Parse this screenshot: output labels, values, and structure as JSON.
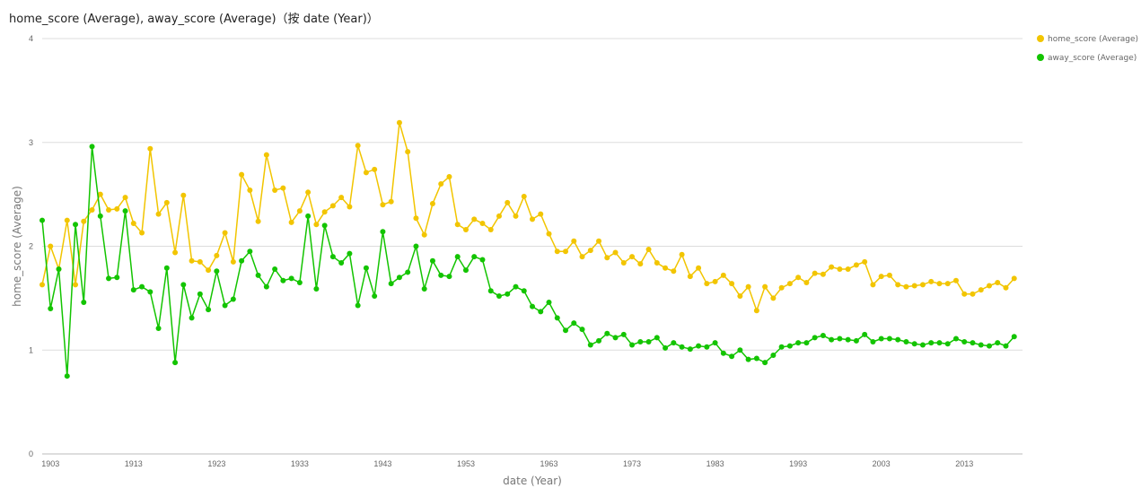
{
  "title": "home_score (Average), away_score (Average)（按 date (Year)）",
  "chart_data": {
    "type": "line",
    "xlabel": "date (Year)",
    "ylabel": "home_score (Average)",
    "ylim": [
      0,
      4
    ],
    "xlim": [
      1902,
      2020
    ],
    "yticks": [
      "0",
      "1",
      "2",
      "3",
      "4"
    ],
    "xticks": [
      "1903",
      "1913",
      "1923",
      "1933",
      "1943",
      "1953",
      "1963",
      "1973",
      "1983",
      "1993",
      "2003",
      "2013"
    ],
    "grid": true,
    "legend_position": "top-right",
    "x": [
      1902,
      1903,
      1904,
      1905,
      1906,
      1907,
      1908,
      1909,
      1910,
      1911,
      1912,
      1913,
      1914,
      1915,
      1916,
      1917,
      1918,
      1919,
      1920,
      1921,
      1922,
      1923,
      1924,
      1925,
      1926,
      1927,
      1928,
      1929,
      1930,
      1931,
      1932,
      1933,
      1934,
      1935,
      1936,
      1937,
      1938,
      1939,
      1940,
      1941,
      1942,
      1943,
      1944,
      1945,
      1946,
      1947,
      1948,
      1949,
      1950,
      1951,
      1952,
      1953,
      1954,
      1955,
      1956,
      1957,
      1958,
      1959,
      1960,
      1961,
      1962,
      1963,
      1964,
      1965,
      1966,
      1967,
      1968,
      1969,
      1970,
      1971,
      1972,
      1973,
      1974,
      1975,
      1976,
      1977,
      1978,
      1979,
      1980,
      1981,
      1982,
      1983,
      1984,
      1985,
      1986,
      1987,
      1988,
      1989,
      1990,
      1991,
      1992,
      1993,
      1994,
      1995,
      1996,
      1997,
      1998,
      1999,
      2000,
      2001,
      2002,
      2003,
      2004,
      2005,
      2006,
      2007,
      2008,
      2009,
      2010,
      2011,
      2012,
      2013,
      2014,
      2015,
      2016,
      2017,
      2018,
      2019
    ],
    "series": [
      {
        "name": "home_score (Average)",
        "color": "#f2c500",
        "values": [
          1.63,
          2.0,
          1.78,
          2.25,
          1.63,
          2.24,
          2.35,
          2.5,
          2.35,
          2.36,
          2.47,
          2.22,
          2.13,
          2.94,
          2.31,
          2.42,
          1.94,
          2.49,
          1.86,
          1.85,
          1.77,
          1.91,
          2.13,
          1.85,
          2.69,
          2.54,
          2.24,
          2.88,
          2.54,
          2.56,
          2.23,
          2.34,
          2.52,
          2.21,
          2.33,
          2.39,
          2.47,
          2.38,
          2.97,
          2.71,
          2.74,
          2.4,
          2.43,
          3.19,
          2.91,
          2.27,
          2.11,
          2.41,
          2.6,
          2.67,
          2.21,
          2.16,
          2.26,
          2.22,
          2.16,
          2.29,
          2.42,
          2.29,
          2.48,
          2.26,
          2.31,
          2.12,
          1.95,
          1.95,
          2.05,
          1.9,
          1.96,
          2.05,
          1.89,
          1.94,
          1.84,
          1.9,
          1.83,
          1.97,
          1.84,
          1.79,
          1.76,
          1.92,
          1.71,
          1.79,
          1.64,
          1.66,
          1.72,
          1.64,
          1.52,
          1.61,
          1.38,
          1.61,
          1.5,
          1.6,
          1.64,
          1.7,
          1.65,
          1.74,
          1.73,
          1.8,
          1.78,
          1.78,
          1.82,
          1.85,
          1.63,
          1.71,
          1.72,
          1.63,
          1.61,
          1.62,
          1.63,
          1.66,
          1.64,
          1.64,
          1.67,
          1.54,
          1.54,
          1.58,
          1.62,
          1.65,
          1.6,
          1.69
        ]
      },
      {
        "name": "away_score (Average)",
        "color": "#13c400",
        "values": [
          2.25,
          1.4,
          1.78,
          0.75,
          2.21,
          1.46,
          2.96,
          2.29,
          1.69,
          1.7,
          2.34,
          1.58,
          1.61,
          1.56,
          1.21,
          1.79,
          0.88,
          1.63,
          1.31,
          1.54,
          1.39,
          1.76,
          1.43,
          1.49,
          1.86,
          1.95,
          1.72,
          1.61,
          1.78,
          1.67,
          1.69,
          1.65,
          2.29,
          1.59,
          2.2,
          1.9,
          1.84,
          1.93,
          1.43,
          1.79,
          1.52,
          2.14,
          1.64,
          1.7,
          1.75,
          2.0,
          1.59,
          1.86,
          1.72,
          1.71,
          1.9,
          1.77,
          1.9,
          1.87,
          1.57,
          1.52,
          1.54,
          1.61,
          1.57,
          1.42,
          1.37,
          1.46,
          1.31,
          1.19,
          1.26,
          1.2,
          1.05,
          1.09,
          1.16,
          1.12,
          1.15,
          1.05,
          1.08,
          1.08,
          1.12,
          1.02,
          1.07,
          1.03,
          1.01,
          1.04,
          1.03,
          1.07,
          0.97,
          0.94,
          1.0,
          0.91,
          0.92,
          0.88,
          0.95,
          1.03,
          1.04,
          1.07,
          1.07,
          1.12,
          1.14,
          1.1,
          1.11,
          1.1,
          1.09,
          1.15,
          1.08,
          1.11,
          1.11,
          1.1,
          1.08,
          1.06,
          1.05,
          1.07,
          1.07,
          1.06,
          1.11,
          1.08,
          1.07,
          1.05,
          1.04,
          1.07,
          1.04,
          1.13
        ]
      }
    ]
  }
}
